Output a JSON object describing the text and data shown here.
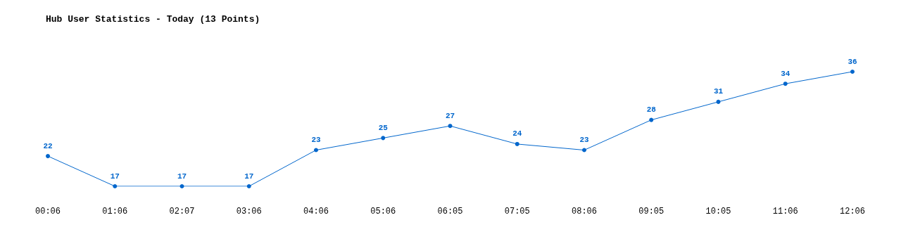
{
  "chart_data": {
    "type": "line",
    "title": "Hub User Statistics - Today (13 Points)",
    "categories": [
      "00:06",
      "01:06",
      "02:07",
      "03:06",
      "04:06",
      "05:06",
      "06:05",
      "07:05",
      "08:06",
      "09:05",
      "10:05",
      "11:06",
      "12:06"
    ],
    "series": [
      {
        "color": "#0066cc",
        "values": [
          22,
          17,
          17,
          17,
          23,
          25,
          27,
          24,
          23,
          28,
          31,
          34,
          36
        ]
      }
    ],
    "data_labels": true,
    "marker": "circle",
    "line_style": "solid",
    "tick_labels": "x",
    "grid": false
  }
}
